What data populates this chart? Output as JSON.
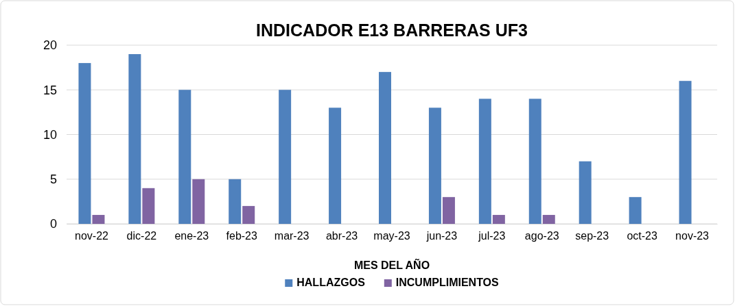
{
  "chart_data": {
    "type": "bar",
    "title": "INDICADOR E13 BARRERAS UF3",
    "xlabel": "MES DEL AÑO",
    "categories": [
      "nov-22",
      "dic-22",
      "ene-23",
      "feb-23",
      "mar-23",
      "abr-23",
      "may-23",
      "jun-23",
      "jul-23",
      "ago-23",
      "sep-23",
      "oct-23",
      "nov-23"
    ],
    "series": [
      {
        "name": "HALLAZGOS",
        "color": "#4f81bd",
        "values": [
          18,
          19,
          15,
          5,
          15,
          13,
          17,
          13,
          14,
          14,
          7,
          3,
          16
        ]
      },
      {
        "name": "INCUMPLIMIENTOS",
        "color": "#8064a2",
        "values": [
          1,
          4,
          5,
          2,
          0,
          0,
          0,
          3,
          1,
          1,
          0,
          0,
          0
        ]
      }
    ],
    "ylim": [
      0,
      20
    ],
    "yticks": [
      0,
      5,
      10,
      15,
      20
    ],
    "grid": "y",
    "legend": "bottom"
  }
}
